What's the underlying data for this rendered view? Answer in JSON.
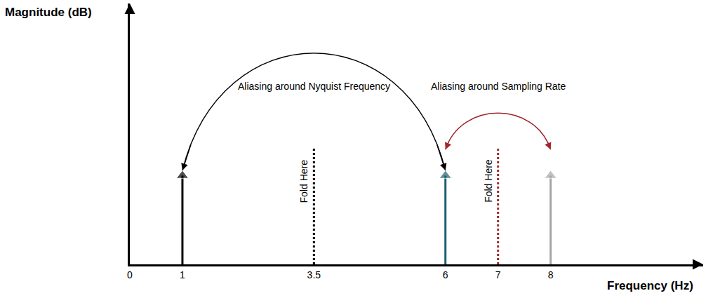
{
  "chart_data": {
    "type": "stem",
    "xlabel": "Frequency (Hz)",
    "ylabel": "Magnitude (dB)",
    "x": [
      1,
      6,
      8
    ],
    "values": [
      3.4,
      3.4,
      3.4
    ],
    "colors": [
      "#000000",
      "#1d5f6f",
      "#a6a6a6"
    ],
    "marker": "triangle-up",
    "xlim": [
      0,
      10.9
    ],
    "xticks": [
      0,
      1,
      3.5,
      6,
      7,
      8
    ],
    "ylim": [
      0,
      10
    ],
    "tick_labels": "x",
    "grid": false,
    "folds": [
      {
        "x": 3.5,
        "height": 4.5,
        "color": "#000000",
        "label": "Fold Here"
      },
      {
        "x": 7,
        "height": 4.5,
        "color": "#a0282c",
        "label": "Fold Here"
      }
    ],
    "arcs": [
      {
        "from": 1,
        "to": 6,
        "color": "#000000",
        "label": "Aliasing around Nyquist Frequency"
      },
      {
        "from": 6,
        "to": 8,
        "color": "#a0282c",
        "label": "Aliasing around Sampling Rate"
      }
    ]
  }
}
